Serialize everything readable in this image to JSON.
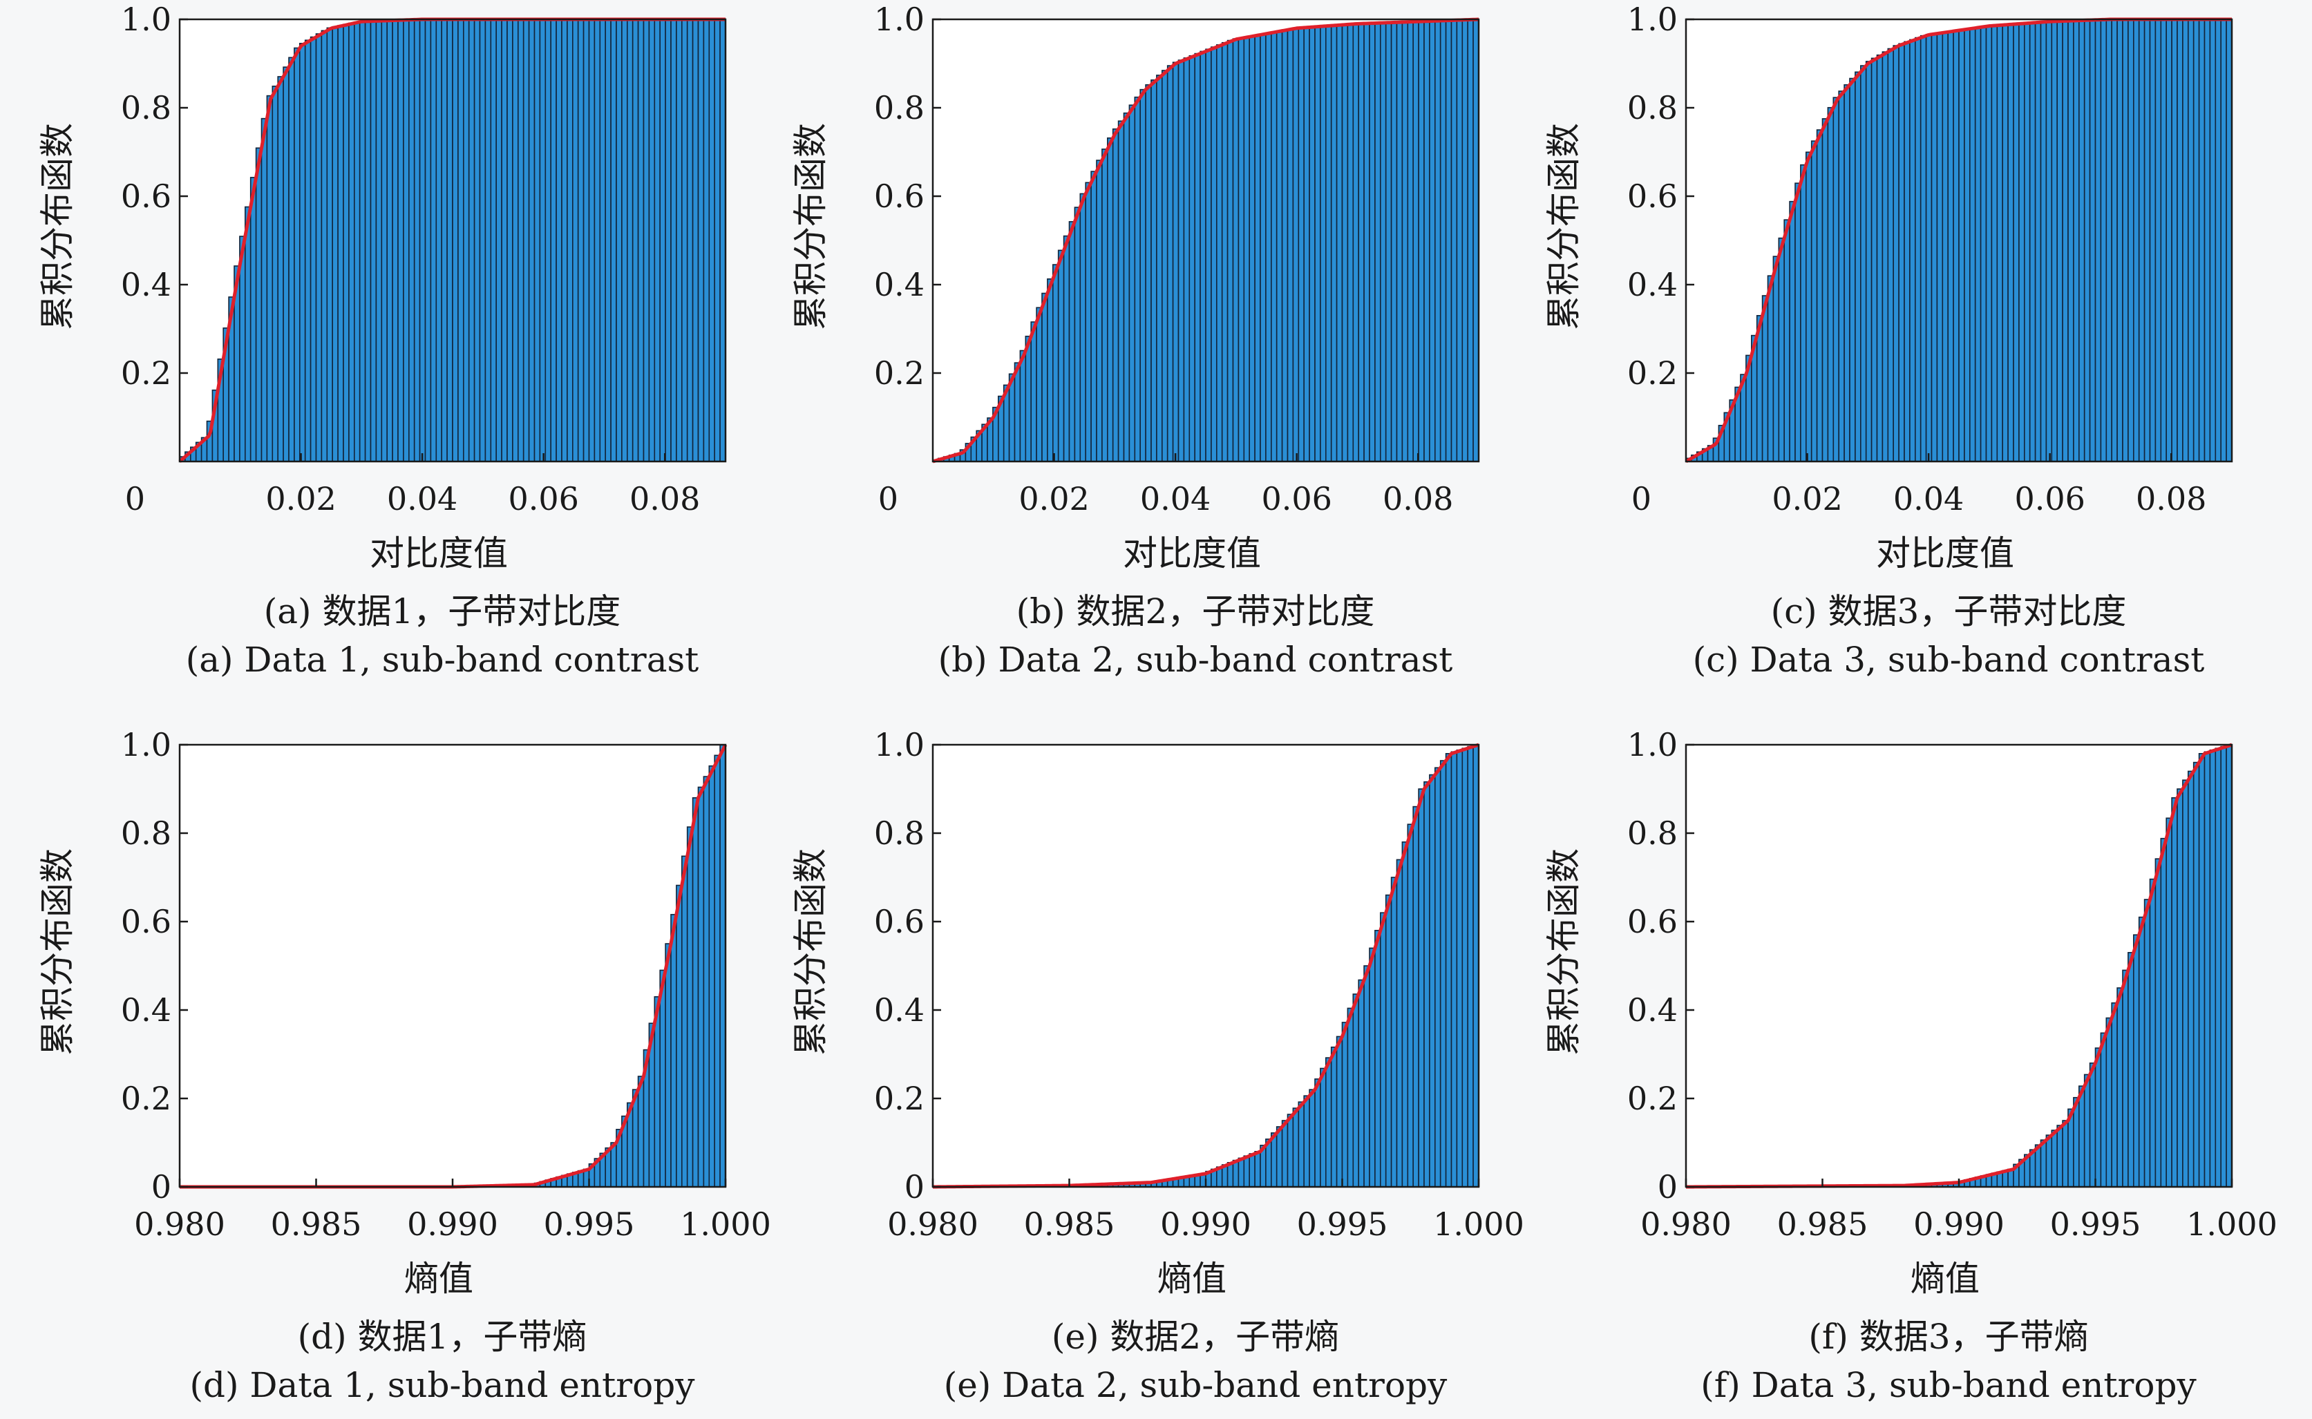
{
  "chart_data": [
    {
      "type": "bar",
      "panel": "a",
      "ylabel": "累积分布函数",
      "xlabel": "对比度值",
      "xlim": [
        0,
        0.09
      ],
      "ylim": [
        0,
        1.0
      ],
      "xticks": [
        0.02,
        0.04,
        0.06,
        0.08
      ],
      "xtick_labels": [
        "0.02",
        "0.04",
        "0.06",
        "0.08"
      ],
      "yticks": [
        0.2,
        0.4,
        0.6,
        0.8,
        1.0
      ],
      "ytick_labels": [
        "0.2",
        "0.4",
        "0.6",
        "0.8",
        "1.0"
      ],
      "origin_label": "0",
      "grid": false,
      "bar_color": "#2a8fd6",
      "curve_color": "#e0202a",
      "x": [
        0.0,
        0.005,
        0.01,
        0.015,
        0.02,
        0.025,
        0.03,
        0.04,
        0.06,
        0.09
      ],
      "y": [
        0.0,
        0.06,
        0.45,
        0.82,
        0.94,
        0.98,
        0.995,
        1.0,
        1.0,
        1.0
      ],
      "caption_cn": "(a) 数据1，子带对比度",
      "caption_en": "(a) Data 1, sub-band contrast"
    },
    {
      "type": "bar",
      "panel": "b",
      "ylabel": "累积分布函数",
      "xlabel": "对比度值",
      "xlim": [
        0,
        0.09
      ],
      "ylim": [
        0,
        1.0
      ],
      "xticks": [
        0.02,
        0.04,
        0.06,
        0.08
      ],
      "xtick_labels": [
        "0.02",
        "0.04",
        "0.06",
        "0.08"
      ],
      "yticks": [
        0.2,
        0.4,
        0.6,
        0.8,
        1.0
      ],
      "ytick_labels": [
        "0.2",
        "0.4",
        "0.6",
        "0.8",
        "1.0"
      ],
      "origin_label": "0",
      "grid": false,
      "bar_color": "#2a8fd6",
      "curve_color": "#e0202a",
      "x": [
        0.0,
        0.005,
        0.01,
        0.015,
        0.02,
        0.025,
        0.03,
        0.035,
        0.04,
        0.05,
        0.06,
        0.07,
        0.08,
        0.09
      ],
      "y": [
        0.0,
        0.02,
        0.1,
        0.24,
        0.42,
        0.6,
        0.74,
        0.84,
        0.9,
        0.955,
        0.98,
        0.99,
        0.995,
        1.0
      ],
      "caption_cn": "(b) 数据2，子带对比度",
      "caption_en": "(b) Data 2, sub-band contrast"
    },
    {
      "type": "bar",
      "panel": "c",
      "ylabel": "累积分布函数",
      "xlabel": "对比度值",
      "xlim": [
        0,
        0.09
      ],
      "ylim": [
        0,
        1.0
      ],
      "xticks": [
        0.02,
        0.04,
        0.06,
        0.08
      ],
      "xtick_labels": [
        "0.02",
        "0.04",
        "0.06",
        "0.08"
      ],
      "yticks": [
        0.2,
        0.4,
        0.6,
        0.8,
        1.0
      ],
      "ytick_labels": [
        "0.2",
        "0.4",
        "0.6",
        "0.8",
        "1.0"
      ],
      "origin_label": "0",
      "grid": false,
      "bar_color": "#2a8fd6",
      "curve_color": "#e0202a",
      "x": [
        0.0,
        0.005,
        0.01,
        0.015,
        0.02,
        0.025,
        0.03,
        0.035,
        0.04,
        0.05,
        0.06,
        0.07,
        0.08,
        0.09
      ],
      "y": [
        0.0,
        0.04,
        0.2,
        0.45,
        0.68,
        0.82,
        0.9,
        0.94,
        0.965,
        0.985,
        0.995,
        1.0,
        1.0,
        1.0
      ],
      "caption_cn": "(c) 数据3，子带对比度",
      "caption_en": "(c) Data 3, sub-band contrast"
    },
    {
      "type": "bar",
      "panel": "d",
      "ylabel": "累积分布函数",
      "xlabel": "熵值",
      "xlim": [
        0.98,
        1.0
      ],
      "ylim": [
        0,
        1.0
      ],
      "xticks": [
        0.98,
        0.985,
        0.99,
        0.995,
        1.0
      ],
      "xtick_labels": [
        "0.980",
        "0.985",
        "0.990",
        "0.995",
        "1.000"
      ],
      "yticks": [
        0,
        0.2,
        0.4,
        0.6,
        0.8,
        1.0
      ],
      "ytick_labels": [
        "0",
        "0.2",
        "0.4",
        "0.6",
        "0.8",
        "1.0"
      ],
      "grid": false,
      "bar_color": "#2a8fd6",
      "curve_color": "#e0202a",
      "x": [
        0.98,
        0.99,
        0.993,
        0.995,
        0.996,
        0.997,
        0.998,
        0.999,
        1.0
      ],
      "y": [
        0.0,
        0.0,
        0.005,
        0.04,
        0.1,
        0.25,
        0.55,
        0.88,
        1.0
      ],
      "caption_cn": "(d) 数据1，子带熵",
      "caption_en": "(d) Data 1, sub-band entropy"
    },
    {
      "type": "bar",
      "panel": "e",
      "ylabel": "累积分布函数",
      "xlabel": "熵值",
      "xlim": [
        0.98,
        1.0
      ],
      "ylim": [
        0,
        1.0
      ],
      "xticks": [
        0.98,
        0.985,
        0.99,
        0.995,
        1.0
      ],
      "xtick_labels": [
        "0.980",
        "0.985",
        "0.990",
        "0.995",
        "1.000"
      ],
      "yticks": [
        0,
        0.2,
        0.4,
        0.6,
        0.8,
        1.0
      ],
      "ytick_labels": [
        "0",
        "0.2",
        "0.4",
        "0.6",
        "0.8",
        "1.0"
      ],
      "grid": false,
      "bar_color": "#2a8fd6",
      "curve_color": "#e0202a",
      "x": [
        0.98,
        0.985,
        0.988,
        0.99,
        0.992,
        0.994,
        0.995,
        0.996,
        0.997,
        0.998,
        0.999,
        1.0
      ],
      "y": [
        0.0,
        0.003,
        0.01,
        0.03,
        0.08,
        0.22,
        0.34,
        0.5,
        0.7,
        0.9,
        0.98,
        1.0
      ],
      "caption_cn": "(e) 数据2，子带熵",
      "caption_en": "(e) Data 2, sub-band entropy"
    },
    {
      "type": "bar",
      "panel": "f",
      "ylabel": "累积分布函数",
      "xlabel": "熵值",
      "xlim": [
        0.98,
        1.0
      ],
      "ylim": [
        0,
        1.0
      ],
      "xticks": [
        0.98,
        0.985,
        0.99,
        0.995,
        1.0
      ],
      "xtick_labels": [
        "0.980",
        "0.985",
        "0.990",
        "0.995",
        "1.000"
      ],
      "yticks": [
        0,
        0.2,
        0.4,
        0.6,
        0.8,
        1.0
      ],
      "ytick_labels": [
        "0",
        "0.2",
        "0.4",
        "0.6",
        "0.8",
        "1.0"
      ],
      "grid": false,
      "bar_color": "#2a8fd6",
      "curve_color": "#e0202a",
      "x": [
        0.98,
        0.988,
        0.99,
        0.992,
        0.994,
        0.995,
        0.996,
        0.997,
        0.998,
        0.999,
        1.0
      ],
      "y": [
        0.0,
        0.003,
        0.01,
        0.04,
        0.15,
        0.28,
        0.45,
        0.65,
        0.88,
        0.98,
        1.0
      ],
      "caption_cn": "(f) 数据3，子带熵",
      "caption_en": "(f) Data 3, sub-band entropy"
    }
  ]
}
